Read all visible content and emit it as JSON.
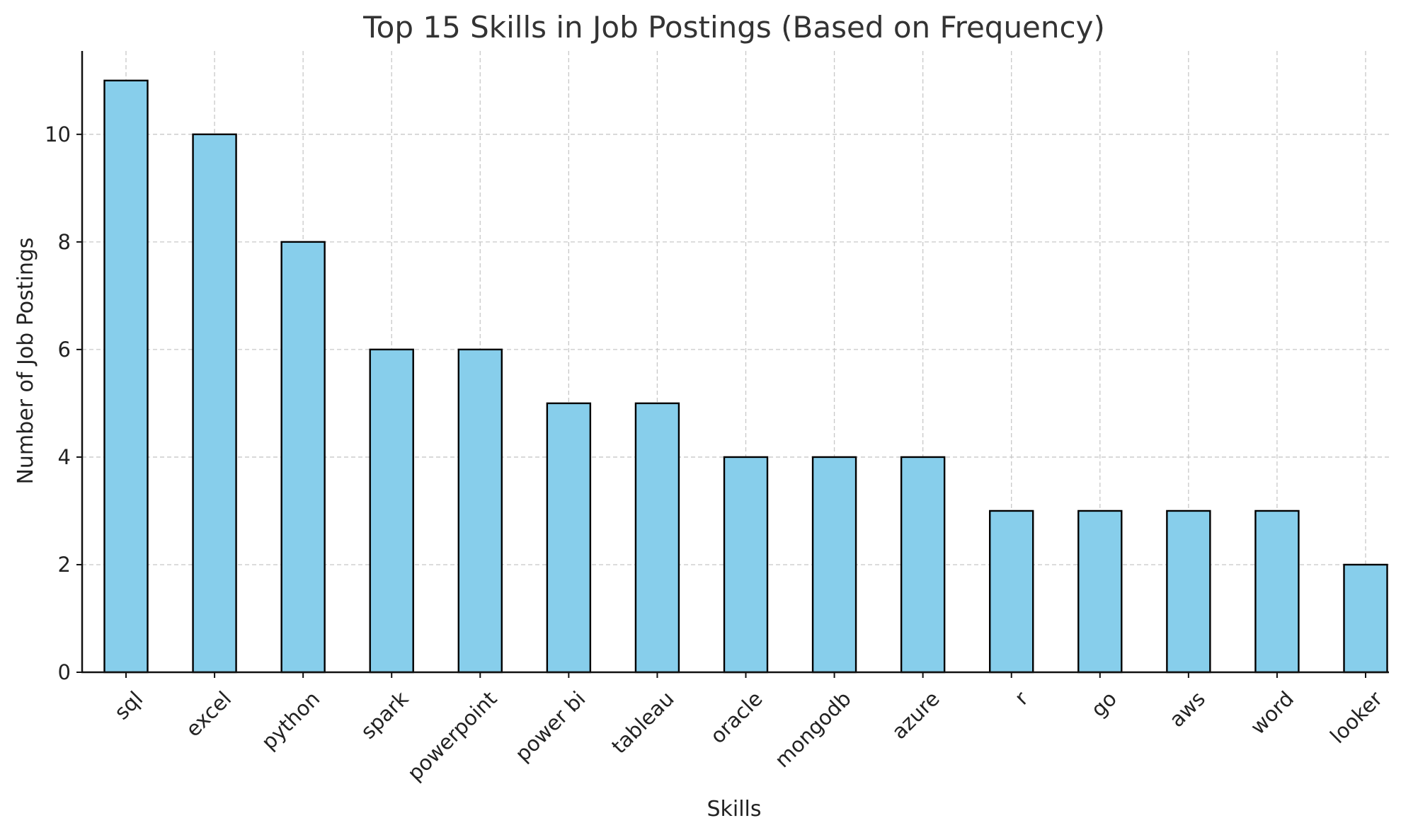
{
  "chart_data": {
    "type": "bar",
    "title": "Top 15 Skills in Job Postings (Based on Frequency)",
    "xlabel": "Skills",
    "ylabel": "Number of Job Postings",
    "categories": [
      "sql",
      "excel",
      "python",
      "spark",
      "powerpoint",
      "power bi",
      "tableau",
      "oracle",
      "mongodb",
      "azure",
      "r",
      "go",
      "aws",
      "word",
      "looker"
    ],
    "values": [
      11,
      10,
      8,
      6,
      6,
      5,
      5,
      4,
      4,
      4,
      3,
      3,
      3,
      3,
      2
    ],
    "ylim": [
      0,
      11.55
    ],
    "yticks": [
      0,
      2,
      4,
      6,
      8,
      10
    ],
    "grid": true,
    "bar_color": "#87ceeb",
    "edge_color": "#000000"
  }
}
